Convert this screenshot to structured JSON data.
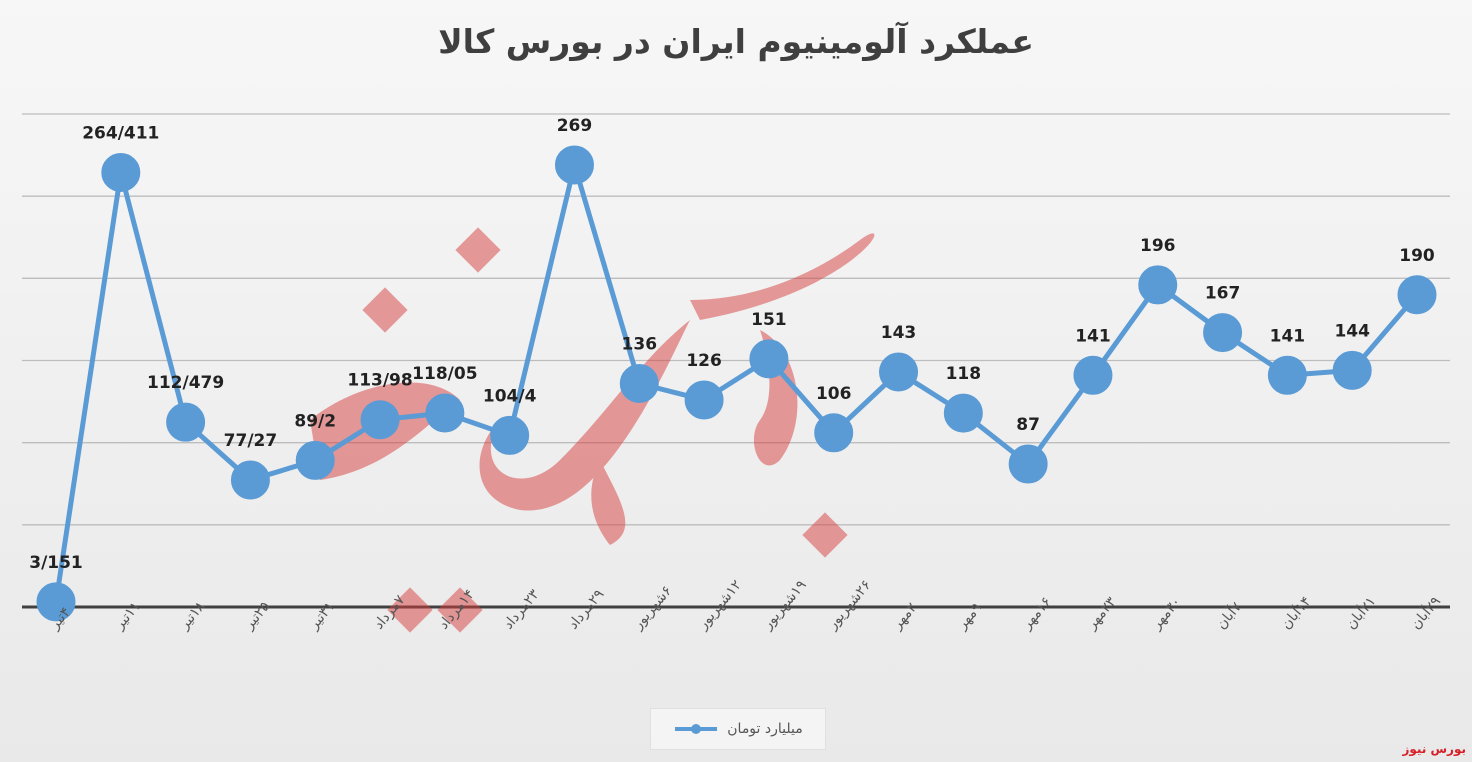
{
  "chart_data": {
    "type": "line",
    "title": "عملکرد آلومینیوم ایران در بورس کالا",
    "categories": [
      "۴تیر",
      "۱۱تیر",
      "۱۸تیر",
      "۲۵تیر",
      "۳۱تیر",
      "۷مرداد",
      "۱۴مرداد",
      "۲۳مرداد",
      "۲۹مرداد",
      "۶شهریور",
      "۱۲شهریور",
      "۱۹شهریور",
      "۲۶شهریور",
      "۲مهر",
      "۹مهر",
      "۱۶مهر",
      "۲۳مهر",
      "۳۰مهر",
      "۷آبان",
      "۱۴آبان",
      "۲۱آبان",
      "۲۹آبان"
    ],
    "series": [
      {
        "name": "میلیارد تومان",
        "color": "#5b9bd5",
        "values": [
          3.151,
          264.411,
          112.479,
          77.27,
          89.2,
          113.98,
          118.05,
          104.4,
          269,
          136,
          126,
          151,
          106,
          143,
          118,
          87,
          141,
          196,
          167,
          141,
          144,
          190
        ],
        "labels": [
          "3/151",
          "264/411",
          "112/479",
          "77/27",
          "89/2",
          "113/98",
          "118/05",
          "104/4",
          "269",
          "136",
          "126",
          "151",
          "106",
          "143",
          "118",
          "87",
          "141",
          "196",
          "167",
          "141",
          "144",
          "190"
        ]
      }
    ],
    "ylim": [
      0,
      300
    ],
    "grid": true,
    "legend": "bottom",
    "watermark": "بورس نیوز"
  },
  "brand": "بورس نیوز"
}
